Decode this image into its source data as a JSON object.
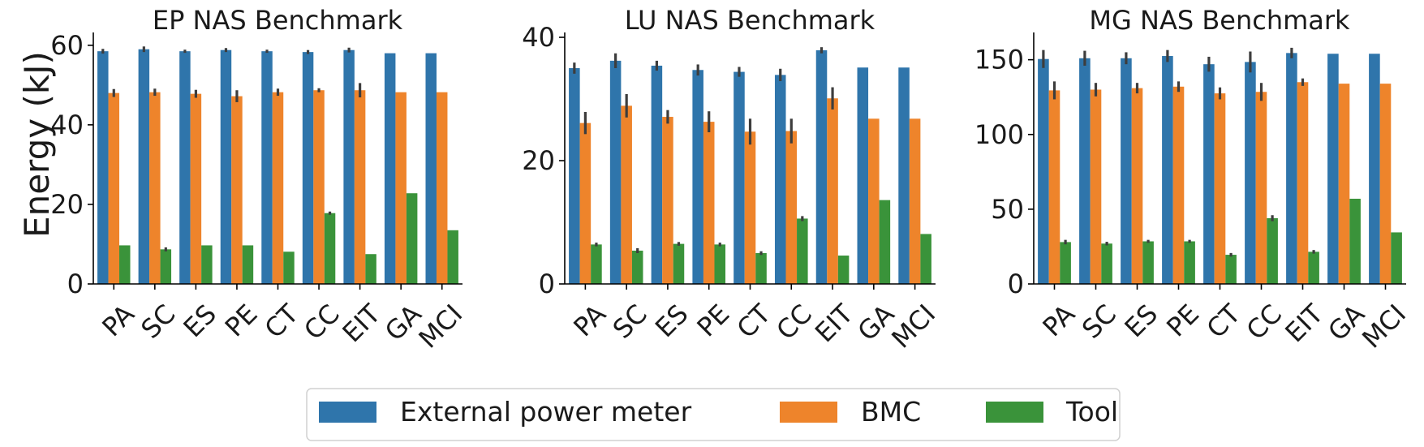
{
  "figure": {
    "ylabel": "Energy (kJ)"
  },
  "legend": {
    "position": "bottom-center",
    "entries": [
      {
        "name": "External power meter",
        "color": "#2f75ab"
      },
      {
        "name": "BMC",
        "color": "#ee842b"
      },
      {
        "name": "Tool",
        "color": "#3a933a"
      }
    ]
  },
  "chart_data": [
    {
      "type": "bar",
      "title": "EP NAS Benchmark",
      "categories": [
        "PA",
        "SC",
        "ES",
        "PE",
        "CT",
        "CC",
        "EIT",
        "GA",
        "MCI"
      ],
      "ylim": [
        0,
        62
      ],
      "yticks": [
        0,
        20,
        40,
        60
      ],
      "series": [
        {
          "name": "External power meter",
          "values": [
            58.5,
            59.0,
            58.5,
            58.8,
            58.5,
            58.3,
            58.8,
            58.0,
            58.0
          ],
          "err": [
            0.6,
            0.7,
            0.4,
            0.5,
            0.4,
            0.5,
            0.6,
            0,
            0
          ]
        },
        {
          "name": "BMC",
          "values": [
            48.0,
            48.2,
            47.8,
            47.2,
            48.2,
            48.7,
            48.7,
            48.2,
            48.2
          ],
          "err": [
            1.0,
            0.9,
            1.0,
            1.5,
            0.9,
            0.5,
            1.8,
            0,
            0
          ]
        },
        {
          "name": "Tool",
          "values": [
            9.7,
            8.7,
            9.7,
            9.7,
            8.1,
            17.8,
            7.5,
            22.8,
            13.5
          ],
          "err": [
            0,
            0.5,
            0,
            0,
            0,
            0.4,
            0,
            0,
            0
          ]
        }
      ]
    },
    {
      "type": "bar",
      "title": "LU NAS Benchmark",
      "categories": [
        "PA",
        "SC",
        "ES",
        "PE",
        "CT",
        "CC",
        "EIT",
        "GA",
        "MCI"
      ],
      "ylim": [
        0,
        40
      ],
      "yticks": [
        0,
        20,
        40
      ],
      "series": [
        {
          "name": "External power meter",
          "values": [
            35.0,
            36.2,
            35.4,
            34.7,
            34.4,
            33.9,
            37.9,
            35.1,
            35.1
          ],
          "err": [
            0.9,
            1.2,
            0.8,
            0.9,
            0.8,
            1.0,
            0.5,
            0,
            0
          ]
        },
        {
          "name": "BMC",
          "values": [
            26.1,
            28.9,
            27.1,
            26.3,
            24.7,
            24.8,
            30.1,
            26.8,
            26.8
          ],
          "err": [
            1.8,
            1.9,
            1.1,
            1.7,
            2.1,
            2.0,
            1.8,
            0,
            0
          ]
        },
        {
          "name": "Tool",
          "values": [
            6.4,
            5.4,
            6.5,
            6.4,
            5.0,
            10.6,
            4.6,
            13.6,
            8.1
          ],
          "err": [
            0.3,
            0.4,
            0.3,
            0.3,
            0.3,
            0.4,
            0,
            0,
            0
          ]
        }
      ]
    },
    {
      "type": "bar",
      "title": "MG NAS Benchmark",
      "categories": [
        "PA",
        "SC",
        "ES",
        "PE",
        "CT",
        "CC",
        "EIT",
        "GA",
        "MCI"
      ],
      "ylim": [
        0,
        165
      ],
      "yticks": [
        0,
        50,
        100,
        150
      ],
      "series": [
        {
          "name": "External power meter",
          "values": [
            150.5,
            151.0,
            151.0,
            152.5,
            147.0,
            148.5,
            154.5,
            154.0,
            154.0
          ],
          "err": [
            6.0,
            5.0,
            4.0,
            4.0,
            5.0,
            7.0,
            3.5,
            0,
            0
          ]
        },
        {
          "name": "BMC",
          "values": [
            129.5,
            130.0,
            131.0,
            132.0,
            127.5,
            128.5,
            135.0,
            134.0,
            134.0
          ],
          "err": [
            6.0,
            4.5,
            3.5,
            3.5,
            4.0,
            6.0,
            2.5,
            0,
            0
          ]
        },
        {
          "name": "Tool",
          "values": [
            28.0,
            27.0,
            28.5,
            28.5,
            19.5,
            44.0,
            21.5,
            57.0,
            34.5
          ],
          "err": [
            1.5,
            1.2,
            1.0,
            1.0,
            1.2,
            2.0,
            1.2,
            0,
            0
          ]
        }
      ]
    }
  ]
}
